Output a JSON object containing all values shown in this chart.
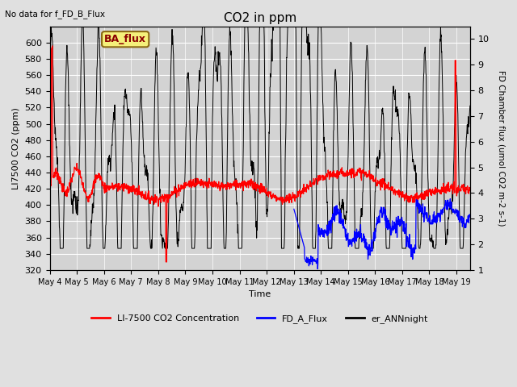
{
  "title": "CO2 in ppm",
  "top_left_text": "No data for f_FD_B_Flux",
  "annotation_box": "BA_flux",
  "xlabel": "Time",
  "ylabel_left": "LI7500 CO2 (ppm)",
  "ylabel_right": "FD Chamber flux (umol CO2 m-2 s-1)",
  "xlim_days": [
    0,
    15.5
  ],
  "ylim_left": [
    320,
    620
  ],
  "ylim_right": [
    1.0,
    10.5
  ],
  "yticks_left": [
    320,
    340,
    360,
    380,
    400,
    420,
    440,
    460,
    480,
    500,
    520,
    540,
    560,
    580,
    600
  ],
  "yticks_right": [
    1.0,
    2.0,
    3.0,
    4.0,
    5.0,
    6.0,
    7.0,
    8.0,
    9.0,
    10.0
  ],
  "xtick_labels": [
    "May 4",
    "May 5",
    "May 6",
    "May 7",
    "May 8",
    "May 9",
    "May 10",
    "May 11",
    "May 12",
    "May 13",
    "May 14",
    "May 15",
    "May 16",
    "May 17",
    "May 18",
    "May 19"
  ],
  "bg_color": "#e0e0e0",
  "plot_bg_color": "#d3d3d3",
  "grid_color": "#f0f0f0"
}
